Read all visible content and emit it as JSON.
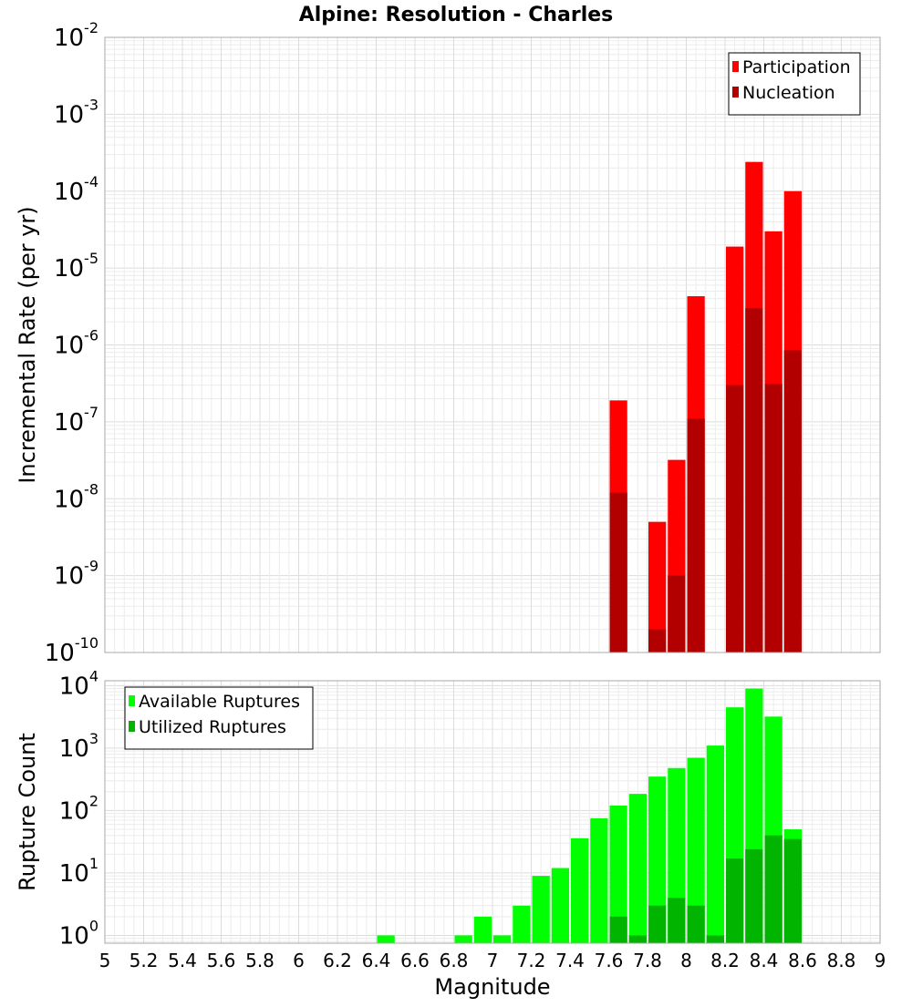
{
  "chart_data": [
    {
      "type": "bar",
      "title": "Alpine: Resolution - Charles",
      "xlabel": "",
      "ylabel": "Incremental Rate (per yr)",
      "y_scale": "log",
      "ylim": [
        1e-10,
        0.01
      ],
      "xlim": [
        5,
        9
      ],
      "y_ticks": [
        {
          "base": "10",
          "exp": "-10",
          "value": 1e-10
        },
        {
          "base": "10",
          "exp": "-9",
          "value": 1e-09
        },
        {
          "base": "10",
          "exp": "-8",
          "value": 1e-08
        },
        {
          "base": "10",
          "exp": "-7",
          "value": 1e-07
        },
        {
          "base": "10",
          "exp": "-6",
          "value": 1e-06
        },
        {
          "base": "10",
          "exp": "-5",
          "value": 1e-05
        },
        {
          "base": "10",
          "exp": "-4",
          "value": 0.0001
        },
        {
          "base": "10",
          "exp": "-3",
          "value": 0.001
        },
        {
          "base": "10",
          "exp": "-2",
          "value": 0.01
        }
      ],
      "grid": true,
      "legend_position": "top-right",
      "x": [
        7.65,
        7.85,
        7.95,
        8.05,
        8.25,
        8.35,
        8.45,
        8.55
      ],
      "series": [
        {
          "name": "Participation",
          "color": "#ff0000",
          "values": [
            1.9e-07,
            5e-09,
            3.2e-08,
            4.3e-06,
            1.9e-05,
            0.00024,
            3e-05,
            0.0001
          ]
        },
        {
          "name": "Nucleation",
          "color": "#b20000",
          "values": [
            1.2e-08,
            2e-10,
            1e-09,
            1.1e-07,
            3e-07,
            3e-06,
            3.1e-07,
            8.5e-07
          ]
        }
      ]
    },
    {
      "type": "bar",
      "title": "",
      "xlabel": "Magnitude",
      "ylabel": "Rupture Count",
      "y_scale": "log",
      "ylim": [
        0.75,
        12000
      ],
      "xlim": [
        5,
        9
      ],
      "x_ticks": [
        "5",
        "5.2",
        "5.4",
        "5.6",
        "5.8",
        "6",
        "6.2",
        "6.4",
        "6.6",
        "6.8",
        "7",
        "7.2",
        "7.4",
        "7.6",
        "7.8",
        "8",
        "8.2",
        "8.4",
        "8.6",
        "8.8",
        "9"
      ],
      "y_ticks": [
        {
          "base": "10",
          "exp": "0",
          "value": 1
        },
        {
          "base": "10",
          "exp": "1",
          "value": 10
        },
        {
          "base": "10",
          "exp": "2",
          "value": 100
        },
        {
          "base": "10",
          "exp": "3",
          "value": 1000
        },
        {
          "base": "10",
          "exp": "4",
          "value": 10000
        }
      ],
      "grid": true,
      "legend_position": "top-left",
      "x": [
        6.45,
        6.85,
        6.95,
        7.05,
        7.15,
        7.25,
        7.35,
        7.45,
        7.55,
        7.65,
        7.75,
        7.85,
        7.95,
        8.05,
        8.15,
        8.25,
        8.35,
        8.45,
        8.55
      ],
      "series": [
        {
          "name": "Available Ruptures",
          "color": "#00ff00",
          "values": [
            1,
            1,
            2,
            1,
            3,
            9,
            12,
            36,
            75,
            120,
            185,
            350,
            480,
            700,
            1100,
            4500,
            9000,
            3200,
            50
          ]
        },
        {
          "name": "Utilized Ruptures",
          "color": "#00b400",
          "values": [
            0,
            0,
            0,
            0,
            0,
            0,
            0,
            0,
            0,
            2,
            1,
            3,
            4,
            3,
            1,
            17,
            24,
            40,
            35
          ]
        }
      ]
    }
  ]
}
